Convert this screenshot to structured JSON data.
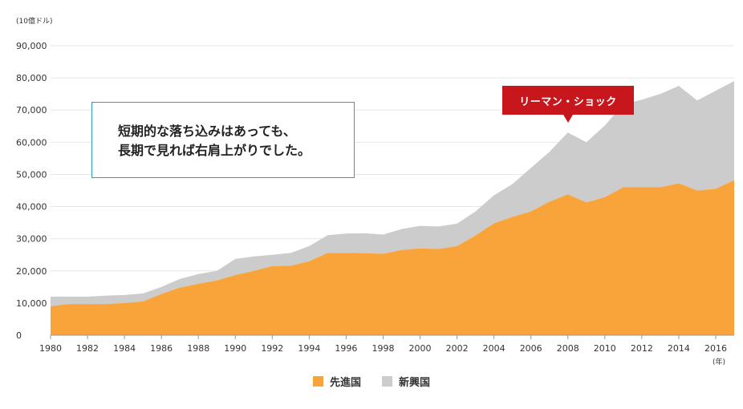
{
  "unit_label": "(10億ドル)",
  "year_suffix": "(年)",
  "annotation": {
    "line1": "短期的な落ち込みはあっても、",
    "line2": "長期で見れば右肩上がりでした。"
  },
  "callout": {
    "label": "リーマン・ショック",
    "year": 2008
  },
  "colors": {
    "advanced": "#f9a43a",
    "emerging": "#cccccc",
    "box_border": "#2aa3b8",
    "callout_bg": "#c8161d"
  },
  "chart_data": {
    "type": "area",
    "stacked": true,
    "grid": true,
    "legend_position": "bottom-center",
    "ylim": [
      0,
      90000
    ],
    "yticks": [
      0,
      10000,
      20000,
      30000,
      40000,
      50000,
      60000,
      70000,
      80000,
      90000
    ],
    "ytick_labels": [
      "0",
      "10,000",
      "20,000",
      "30,000",
      "40,000",
      "50,000",
      "60,000",
      "70,000",
      "80,000",
      "90,000"
    ],
    "xlim": [
      1980,
      2017
    ],
    "xticks": [
      1980,
      1982,
      1984,
      1986,
      1988,
      1990,
      1992,
      1994,
      1996,
      1998,
      2000,
      2002,
      2004,
      2006,
      2008,
      2010,
      2012,
      2014,
      2016
    ],
    "x": [
      1980,
      1981,
      1982,
      1983,
      1984,
      1985,
      1986,
      1987,
      1988,
      1989,
      1990,
      1991,
      1992,
      1993,
      1994,
      1995,
      1996,
      1997,
      1998,
      1999,
      2000,
      2001,
      2002,
      2003,
      2004,
      2005,
      2006,
      2007,
      2008,
      2009,
      2010,
      2011,
      2012,
      2013,
      2014,
      2015,
      2016,
      2017
    ],
    "series": [
      {
        "name": "先進国",
        "values": [
          9000,
          9700,
          9700,
          9700,
          10000,
          10500,
          12800,
          14800,
          16000,
          17000,
          18700,
          20000,
          21500,
          21600,
          23000,
          25600,
          25600,
          25500,
          25300,
          26500,
          27000,
          26800,
          27700,
          31000,
          34800,
          36800,
          38500,
          41500,
          43800,
          41300,
          42900,
          46000,
          46000,
          46000,
          47200,
          45000,
          45500,
          48200
        ]
      },
      {
        "name": "新興国",
        "values": [
          3000,
          2300,
          2300,
          2600,
          2500,
          2500,
          2200,
          2700,
          3000,
          3000,
          5000,
          4500,
          3500,
          4000,
          4700,
          5500,
          6000,
          6200,
          6000,
          6500,
          7000,
          7000,
          7000,
          7500,
          8700,
          10200,
          13500,
          15500,
          19200,
          18700,
          22300,
          25800,
          27200,
          29000,
          30300,
          28000,
          30500,
          30800
        ]
      }
    ]
  }
}
